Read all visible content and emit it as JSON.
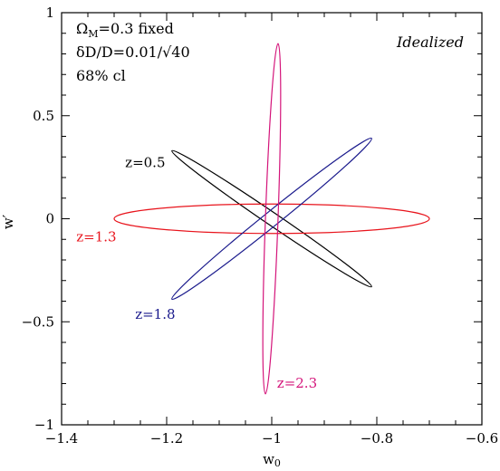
{
  "chart_data": {
    "type": "scatter",
    "title": "",
    "xlabel": "w",
    "xlabel_sub": "0",
    "ylabel": "w′",
    "xlim": [
      -1.4,
      -0.6
    ],
    "ylim": [
      -1,
      1
    ],
    "xticks": [
      -1.4,
      -1.2,
      -1.0,
      -0.8,
      -0.6
    ],
    "xtick_labels": [
      "−1.4",
      "−1.2",
      "−1",
      "−0.8",
      "−0.6"
    ],
    "yticks": [
      -1,
      -0.5,
      0,
      0.5,
      1
    ],
    "ytick_labels": [
      "−1",
      "−0.5",
      "0",
      "0.5",
      "1"
    ],
    "grid": false,
    "annotations": {
      "omega_line": "Ω",
      "omega_sub": "M",
      "omega_rest": "=0.3 fixed",
      "precision": "δD/D=0.01/√40",
      "confidence": "68% cl",
      "idealized": "Idealized"
    },
    "series": [
      {
        "name": "z=0.5",
        "color": "#000000",
        "center": [
          -1.0,
          0.0
        ],
        "semi_major": [
          0.19,
          -0.33
        ],
        "semi_minor_width": 0.012,
        "label_x": -1.279,
        "label_y": 0.25
      },
      {
        "name": "z=1.3",
        "color": "#e8141c",
        "center": [
          -1.0,
          0.0
        ],
        "semi_major": [
          0.3,
          0.0
        ],
        "semi_minor_width": 0.028,
        "label_x": -1.372,
        "label_y": -0.11
      },
      {
        "name": "z=1.8",
        "color": "#1a1a8c",
        "center": [
          -1.0,
          0.0
        ],
        "semi_major": [
          0.19,
          0.39
        ],
        "semi_minor_width": 0.014,
        "label_x": -1.26,
        "label_y": -0.485
      },
      {
        "name": "z=2.3",
        "color": "#d4147a",
        "center": [
          -1.0,
          0.0
        ],
        "semi_major": [
          0.012,
          0.85
        ],
        "semi_minor_width": 0.012,
        "label_x": -0.99,
        "label_y": -0.82
      }
    ]
  }
}
